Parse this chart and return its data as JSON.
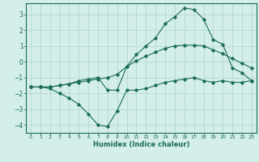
{
  "xlabel": "Humidex (Indice chaleur)",
  "ylabel": "",
  "bg_color": "#d4eeea",
  "grid_color": "#aed4ce",
  "line_color": "#1a6b5a",
  "xlim": [
    -0.5,
    23.5
  ],
  "ylim": [
    -4.5,
    3.7
  ],
  "yticks": [
    -4,
    -3,
    -2,
    -1,
    0,
    1,
    2,
    3
  ],
  "xticks": [
    0,
    1,
    2,
    3,
    4,
    5,
    6,
    7,
    8,
    9,
    10,
    11,
    12,
    13,
    14,
    15,
    16,
    17,
    18,
    19,
    20,
    21,
    22,
    23
  ],
  "line1_x": [
    0,
    1,
    2,
    3,
    4,
    5,
    6,
    7,
    8,
    9,
    10,
    11,
    12,
    13,
    14,
    15,
    16,
    17,
    18,
    19,
    20,
    21,
    22,
    23
  ],
  "line1_y": [
    -1.6,
    -1.6,
    -1.7,
    -2.0,
    -2.3,
    -2.7,
    -3.3,
    -4.0,
    -4.1,
    -3.1,
    -1.8,
    -1.8,
    -1.7,
    -1.5,
    -1.3,
    -1.2,
    -1.1,
    -1.0,
    -1.2,
    -1.3,
    -1.2,
    -1.3,
    -1.3,
    -1.2
  ],
  "line2_x": [
    0,
    1,
    2,
    3,
    4,
    5,
    6,
    7,
    8,
    9,
    10,
    11,
    12,
    13,
    14,
    15,
    16,
    17,
    18,
    19,
    20,
    21,
    22,
    23
  ],
  "line2_y": [
    -1.6,
    -1.6,
    -1.6,
    -1.5,
    -1.4,
    -1.3,
    -1.2,
    -1.1,
    -1.0,
    -0.8,
    -0.3,
    0.05,
    0.35,
    0.6,
    0.85,
    1.0,
    1.05,
    1.05,
    1.0,
    0.75,
    0.5,
    0.2,
    -0.1,
    -0.4
  ],
  "line3_x": [
    0,
    1,
    2,
    3,
    4,
    5,
    6,
    7,
    8,
    9,
    10,
    11,
    12,
    13,
    14,
    15,
    16,
    17,
    18,
    19,
    20,
    21,
    22,
    23
  ],
  "line3_y": [
    -1.6,
    -1.6,
    -1.6,
    -1.5,
    -1.4,
    -1.2,
    -1.1,
    -1.0,
    -1.8,
    -1.8,
    -0.3,
    0.45,
    1.0,
    1.5,
    2.4,
    2.85,
    3.4,
    3.3,
    2.7,
    1.4,
    1.1,
    -0.4,
    -0.7,
    -1.2
  ]
}
